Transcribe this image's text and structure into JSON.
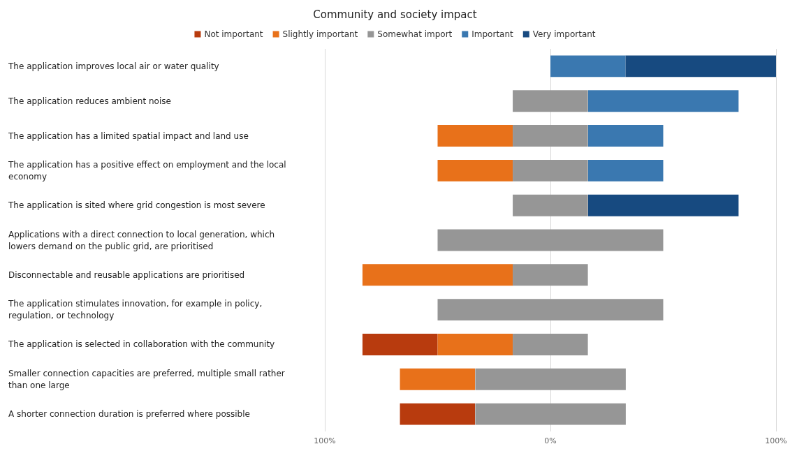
{
  "chart_data": {
    "type": "bar",
    "orientation": "horizontal",
    "title": "Community and society impact",
    "categories": [
      "The application improves local air or water quality",
      "The application reduces ambient noise",
      "The application has a limited spatial impact and land use",
      "The application has a positive effect on employment and the local economy",
      "The application is sited where grid congestion is most severe",
      "Applications with a direct connection to local generation, which lowers demand on the public grid, are prioritised",
      "Disconnectable and reusable applications are prioritised",
      "The application stimulates innovation, for example in policy, regulation, or technology",
      "The application is selected in collaboration with the community",
      "Smaller connection capacities are preferred, multiple small rather than one large",
      "A shorter connection duration is preferred where possible"
    ],
    "series": [
      {
        "name": "Not important",
        "color": "#b83b0e",
        "values": [
          null,
          null,
          null,
          null,
          null,
          null,
          null,
          null,
          33.3,
          null,
          33.3
        ],
        "base": [
          null,
          null,
          null,
          null,
          null,
          null,
          null,
          null,
          -83.3,
          null,
          -66.7
        ]
      },
      {
        "name": "Slightly important",
        "color": "#e8711a",
        "values": [
          null,
          null,
          33.3,
          33.3,
          null,
          null,
          66.7,
          null,
          33.3,
          33.3,
          null
        ],
        "base": [
          null,
          null,
          -50,
          -50,
          null,
          null,
          -83.3,
          null,
          -50,
          -66.7,
          null
        ]
      },
      {
        "name": "Somewhat import",
        "color": "#969696",
        "values": [
          null,
          33.3,
          33.3,
          33.3,
          33.3,
          100,
          33.3,
          100,
          33.3,
          66.7,
          66.7
        ],
        "base": [
          null,
          -16.7,
          -16.7,
          -16.7,
          -16.7,
          -50,
          -16.7,
          -50,
          -16.7,
          -33.3,
          -33.3
        ]
      },
      {
        "name": "Important",
        "color": "#3a78b0",
        "values": [
          33.3,
          66.7,
          33.3,
          33.3,
          null,
          null,
          null,
          null,
          null,
          null,
          null
        ],
        "base": [
          0,
          16.7,
          16.7,
          16.7,
          null,
          null,
          null,
          null,
          null,
          null,
          null
        ]
      },
      {
        "name": "Very important",
        "color": "#174a80",
        "values": [
          66.7,
          null,
          null,
          null,
          66.7,
          null,
          null,
          null,
          null,
          null,
          null
        ],
        "base": [
          33.3,
          null,
          null,
          null,
          16.7,
          null,
          null,
          null,
          null,
          null,
          null
        ]
      }
    ],
    "xlim": [
      -100,
      100
    ],
    "xticks": [
      {
        "value": -100,
        "label": "100%"
      },
      {
        "value": 0,
        "label": "0%"
      },
      {
        "value": 100,
        "label": "100%"
      }
    ],
    "grid": "x",
    "legend": "top"
  }
}
